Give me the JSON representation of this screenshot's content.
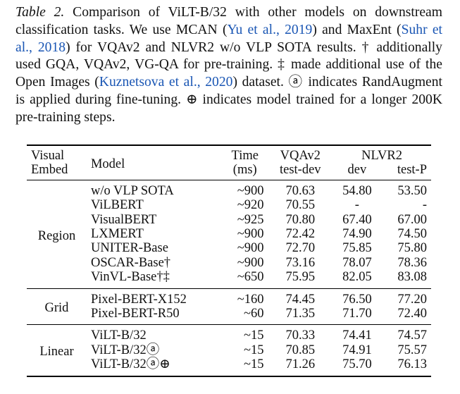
{
  "caption": {
    "label": "Table 2.",
    "segments": [
      {
        "text": " Comparison of ViLT-B/32 with other models on downstream classification tasks. We use MCAN ("
      },
      {
        "text": "Yu et al., 2019",
        "style": "cite"
      },
      {
        "text": ") and MaxEnt ("
      },
      {
        "text": "Suhr et al., 2018",
        "style": "cite"
      },
      {
        "text": ") for VQAv2 and NLVR2 w/o VLP SOTA results. † additionally used GQA, VQAv2, VG-QA for pre-training. ‡ made additional use of the Open Images ("
      },
      {
        "text": "Kuznetsova et al., 2020",
        "style": "cite"
      },
      {
        "text": ") dataset. ⓐ indicates RandAugment is applied during fine-tuning. ⊕ indicates model trained for a longer 200K pre-training steps."
      }
    ]
  },
  "table": {
    "header": {
      "embed": [
        "Visual",
        "Embed"
      ],
      "model": "Model",
      "time": [
        "Time",
        "(ms)"
      ],
      "vqa": [
        "VQAv2",
        "test-dev"
      ],
      "nlvr": "NLVR2",
      "nlvr_sub": [
        "dev",
        "test-P"
      ]
    },
    "groups": [
      {
        "embed": "Region",
        "rows": [
          [
            "w/o VLP SOTA",
            "~900",
            "70.63",
            "54.80",
            "53.50"
          ],
          [
            "ViLBERT",
            "~920",
            "70.55",
            "-",
            "-"
          ],
          [
            "VisualBERT",
            "~925",
            "70.80",
            "67.40",
            "67.00"
          ],
          [
            "LXMERT",
            "~900",
            "72.42",
            "74.90",
            "74.50"
          ],
          [
            "UNITER-Base",
            "~900",
            "72.70",
            "75.85",
            "75.80"
          ],
          [
            "OSCAR-Base†",
            "~900",
            "73.16",
            "78.07",
            "78.36"
          ],
          [
            "VinVL-Base†‡",
            "~650",
            "75.95",
            "82.05",
            "83.08"
          ]
        ]
      },
      {
        "embed": "Grid",
        "rows": [
          [
            "Pixel-BERT-X152",
            "~160",
            "74.45",
            "76.50",
            "77.20"
          ],
          [
            "Pixel-BERT-R50",
            "~60",
            "71.35",
            "71.70",
            "72.40"
          ]
        ]
      },
      {
        "embed": "Linear",
        "rows": [
          [
            "ViLT-B/32",
            "~15",
            "70.33",
            "74.41",
            "74.57"
          ],
          [
            "ViLT-B/32ⓐ",
            "~15",
            "70.85",
            "74.91",
            "75.57"
          ],
          [
            "ViLT-B/32ⓐ⊕",
            "~15",
            "71.26",
            "75.70",
            "76.13"
          ]
        ]
      }
    ]
  }
}
